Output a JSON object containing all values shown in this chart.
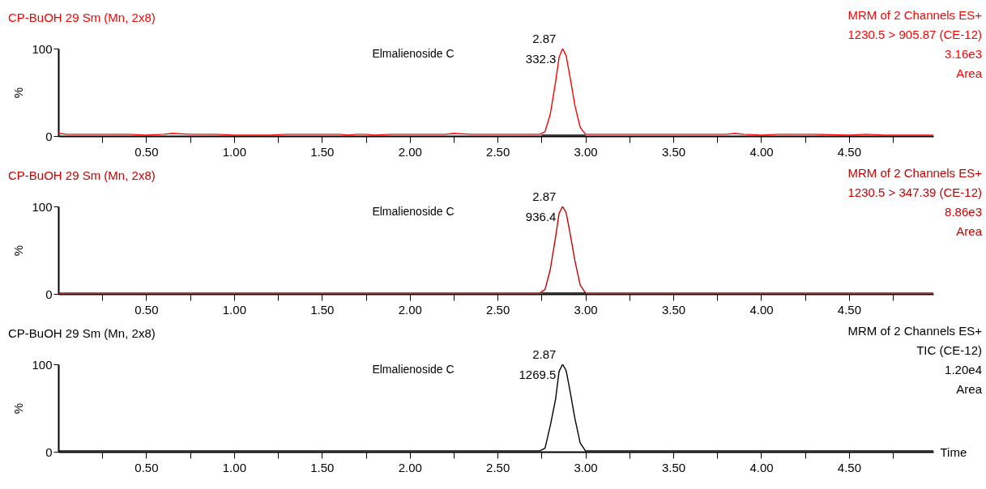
{
  "chart_data": [
    {
      "type": "line",
      "title": "CP-BuOH 29 Sm (Mn, 2x8)",
      "ylabel": "%",
      "xlim": [
        0,
        4.98
      ],
      "ylim": [
        0,
        100
      ],
      "yticks": [
        0,
        100
      ],
      "grid": false,
      "marker": "none",
      "line_style": "solid",
      "xticks": [
        {
          "value": 0.25,
          "label": null
        },
        {
          "value": 0.5,
          "label": "0.50"
        },
        {
          "value": 0.75,
          "label": null
        },
        {
          "value": 1.0,
          "label": "1.00"
        },
        {
          "value": 1.25,
          "label": null
        },
        {
          "value": 1.5,
          "label": "1.50"
        },
        {
          "value": 1.75,
          "label": null
        },
        {
          "value": 2.0,
          "label": "2.00"
        },
        {
          "value": 2.25,
          "label": null
        },
        {
          "value": 2.5,
          "label": "2.50"
        },
        {
          "value": 2.75,
          "label": null
        },
        {
          "value": 3.0,
          "label": "3.00"
        },
        {
          "value": 3.25,
          "label": null
        },
        {
          "value": 3.5,
          "label": "3.50"
        },
        {
          "value": 3.75,
          "label": null
        },
        {
          "value": 4.0,
          "label": "4.00"
        },
        {
          "value": 4.25,
          "label": null
        },
        {
          "value": 4.5,
          "label": "4.50"
        },
        {
          "value": 4.75,
          "label": null
        }
      ],
      "annotations": [
        "MRM of 2 Channels ES+",
        "1230.5 > 905.87 (CE-12)",
        "3.16e3",
        "Area",
        "Elmalienoside C",
        "2.87",
        "332.3"
      ],
      "series": [
        {
          "color": "#ff0000",
          "x": [
            0,
            0.05,
            0.1,
            0.2,
            0.3,
            0.4,
            0.5,
            0.6,
            0.65,
            0.75,
            0.8,
            0.9,
            1.0,
            1.1,
            1.2,
            1.3,
            1.4,
            1.5,
            1.6,
            1.65,
            1.7,
            1.75,
            1.8,
            1.9,
            2.0,
            2.1,
            2.2,
            2.25,
            2.35,
            2.4,
            2.5,
            2.6,
            2.7,
            2.74,
            2.77,
            2.8,
            2.83,
            2.85,
            2.87,
            2.89,
            2.91,
            2.94,
            2.97,
            3.0,
            3.2,
            3.4,
            3.6,
            3.8,
            3.85,
            3.9,
            4.0,
            4.1,
            4.3,
            4.5,
            4.6,
            4.7,
            4.8,
            4.98
          ],
          "values": [
            3,
            2,
            2,
            2,
            2,
            2,
            1,
            2,
            3,
            2,
            2,
            2,
            1,
            1,
            1,
            2,
            2,
            2,
            2,
            1,
            2,
            2,
            1,
            2,
            2,
            2,
            2,
            3,
            2,
            2,
            2,
            2,
            2,
            2,
            5,
            25,
            62,
            90,
            100,
            92,
            70,
            35,
            10,
            2,
            2,
            2,
            2,
            2,
            3,
            2,
            1,
            2,
            2,
            1,
            2,
            1,
            1,
            1
          ]
        },
        {
          "color": "#000000",
          "x": [
            2.75,
            3.0
          ],
          "values": [
            1,
            1
          ]
        }
      ]
    },
    {
      "type": "line",
      "title": "CP-BuOH 29 Sm (Mn, 2x8)",
      "ylabel": "%",
      "xlim": [
        0,
        4.98
      ],
      "ylim": [
        0,
        100
      ],
      "yticks": [
        0,
        100
      ],
      "grid": false,
      "marker": "none",
      "line_style": "solid",
      "xticks": [
        {
          "value": 0.25,
          "label": null
        },
        {
          "value": 0.5,
          "label": "0.50"
        },
        {
          "value": 0.75,
          "label": null
        },
        {
          "value": 1.0,
          "label": "1.00"
        },
        {
          "value": 1.25,
          "label": null
        },
        {
          "value": 1.5,
          "label": "1.50"
        },
        {
          "value": 1.75,
          "label": null
        },
        {
          "value": 2.0,
          "label": "2.00"
        },
        {
          "value": 2.25,
          "label": null
        },
        {
          "value": 2.5,
          "label": "2.50"
        },
        {
          "value": 2.75,
          "label": null
        },
        {
          "value": 3.0,
          "label": "3.00"
        },
        {
          "value": 3.25,
          "label": null
        },
        {
          "value": 3.5,
          "label": "3.50"
        },
        {
          "value": 3.75,
          "label": null
        },
        {
          "value": 4.0,
          "label": "4.00"
        },
        {
          "value": 4.25,
          "label": null
        },
        {
          "value": 4.5,
          "label": "4.50"
        },
        {
          "value": 4.75,
          "label": null
        }
      ],
      "annotations": [
        "MRM of 2 Channels ES+",
        "1230.5 > 347.39 (CE-12)",
        "8.86e3",
        "Area",
        "Elmalienoside C",
        "2.87",
        "936.4"
      ],
      "series": [
        {
          "color": "#c80000",
          "x": [
            0,
            0.5,
            1.0,
            1.5,
            2.0,
            2.5,
            2.7,
            2.74,
            2.77,
            2.8,
            2.83,
            2.85,
            2.87,
            2.89,
            2.91,
            2.94,
            2.97,
            3.0,
            3.5,
            4.0,
            4.5,
            4.98
          ],
          "values": [
            1,
            1,
            1,
            1,
            1,
            1,
            1,
            1,
            5,
            28,
            65,
            92,
            100,
            93,
            72,
            38,
            10,
            1,
            1,
            1,
            1,
            1
          ]
        },
        {
          "color": "#000000",
          "x": [
            2.75,
            3.0
          ],
          "values": [
            1,
            1
          ]
        }
      ]
    },
    {
      "type": "line",
      "title": "CP-BuOH 29 Sm (Mn, 2x8)",
      "ylabel": "%",
      "xlabel": "Time",
      "xlim": [
        0,
        4.98
      ],
      "ylim": [
        0,
        100
      ],
      "yticks": [
        0,
        100
      ],
      "grid": false,
      "marker": "none",
      "line_style": "solid",
      "xticks": [
        {
          "value": 0.25,
          "label": null
        },
        {
          "value": 0.5,
          "label": "0.50"
        },
        {
          "value": 0.75,
          "label": null
        },
        {
          "value": 1.0,
          "label": "1.00"
        },
        {
          "value": 1.25,
          "label": null
        },
        {
          "value": 1.5,
          "label": "1.50"
        },
        {
          "value": 1.75,
          "label": null
        },
        {
          "value": 2.0,
          "label": "2.00"
        },
        {
          "value": 2.25,
          "label": null
        },
        {
          "value": 2.5,
          "label": "2.50"
        },
        {
          "value": 2.75,
          "label": null
        },
        {
          "value": 3.0,
          "label": "3.00"
        },
        {
          "value": 3.25,
          "label": null
        },
        {
          "value": 3.5,
          "label": "3.50"
        },
        {
          "value": 3.75,
          "label": null
        },
        {
          "value": 4.0,
          "label": "4.00"
        },
        {
          "value": 4.25,
          "label": null
        },
        {
          "value": 4.5,
          "label": "4.50"
        },
        {
          "value": 4.75,
          "label": null
        }
      ],
      "annotations": [
        "MRM of 2 Channels ES+",
        "TIC (CE-12)",
        "1.20e4",
        "Area",
        "Elmalienoside C",
        "2.87",
        "1269.5"
      ],
      "series": [
        {
          "color": "#000000",
          "x": [
            0,
            0.5,
            1.0,
            1.5,
            2.0,
            2.5,
            2.7,
            2.74,
            2.77,
            2.8,
            2.83,
            2.85,
            2.87,
            2.89,
            2.91,
            2.94,
            2.97,
            3.0,
            3.5,
            4.0,
            4.5,
            4.98
          ],
          "values": [
            1,
            1,
            1,
            1,
            1,
            1,
            1,
            1,
            4,
            30,
            60,
            92,
            100,
            93,
            72,
            38,
            10,
            1,
            1,
            1,
            1,
            1
          ]
        }
      ]
    }
  ]
}
